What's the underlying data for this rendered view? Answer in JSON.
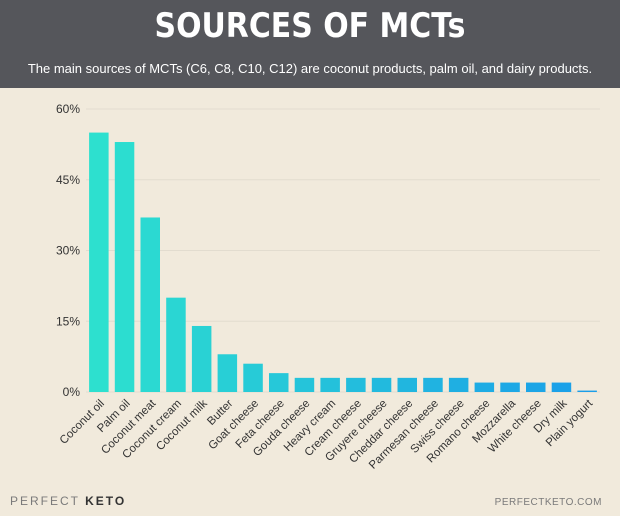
{
  "header": {
    "title": "SOURCES OF MCTs",
    "subtitle": "The main sources of MCTs (C6, C8, C10, C12) are coconut products, palm oil, and dairy products."
  },
  "footer": {
    "brand_prefix": "PERFECT ",
    "brand_suffix": "KETO",
    "website": "PERFECTKETO.COM"
  },
  "colors": {
    "background": "#f1eadc",
    "header": "#55565b",
    "bar_start": "#2de0cf",
    "bar_end": "#1a9ee9",
    "grid": "#e2dccf",
    "tick_text": "#333333"
  },
  "chart_data": {
    "type": "bar",
    "title": "SOURCES OF MCTs",
    "xlabel": "",
    "ylabel": "",
    "ylim": [
      0,
      60
    ],
    "yticks": [
      0,
      15,
      30,
      45,
      60
    ],
    "ytick_labels": [
      "0%",
      "15%",
      "30%",
      "45%",
      "60%"
    ],
    "grid": true,
    "categories": [
      "Coconut oil",
      "Palm oil",
      "Coconut meat",
      "Coconut cream",
      "Coconut milk",
      "Butter",
      "Goat cheese",
      "Feta cheese",
      "Gouda cheese",
      "Heavy cream",
      "Cream cheese",
      "Gruyere cheese",
      "Cheddar cheese",
      "Parmesan cheese",
      "Swiss cheese",
      "Romano cheese",
      "Mozzarella",
      "White cheese",
      "Dry milk",
      "Plain yogurt"
    ],
    "values": [
      55,
      53,
      37,
      20,
      14,
      8,
      6,
      4,
      3,
      3,
      3,
      3,
      3,
      3,
      3,
      2,
      2,
      2,
      2,
      0.3
    ]
  }
}
